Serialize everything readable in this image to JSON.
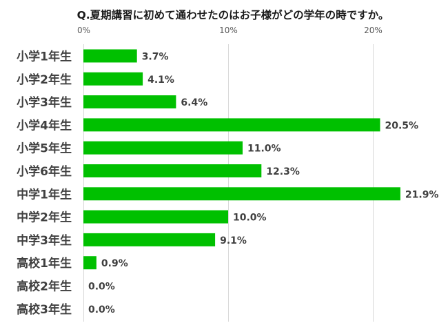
{
  "chart_data": {
    "type": "bar",
    "orientation": "horizontal",
    "title": "Q.夏期講習に初めて通わせたのはお子様がどの学年の時ですか。",
    "categories": [
      "小学1年生",
      "小学2年生",
      "小学3年生",
      "小学4年生",
      "小学5年生",
      "小学6年生",
      "中学1年生",
      "中学2年生",
      "中学3年生",
      "高校1年生",
      "高校2年生",
      "高校3年生"
    ],
    "values": [
      3.7,
      4.1,
      6.4,
      20.5,
      11.0,
      12.3,
      21.9,
      10.0,
      9.1,
      0.9,
      0.0,
      0.0
    ],
    "value_labels": [
      "3.7%",
      "4.1%",
      "6.4%",
      "20.5%",
      "11.0%",
      "12.3%",
      "21.9%",
      "10.0%",
      "9.1%",
      "0.9%",
      "0.0%",
      "0.0%"
    ],
    "xlim": [
      0,
      25
    ],
    "x_ticks": [
      0,
      10,
      20
    ],
    "x_tick_labels": [
      "0%",
      "10%",
      "20%"
    ],
    "x_axis_position": "top",
    "grid": true,
    "bar_color": "#00c000",
    "grid_color": "#d9d9d9",
    "label_color": "#404040"
  }
}
